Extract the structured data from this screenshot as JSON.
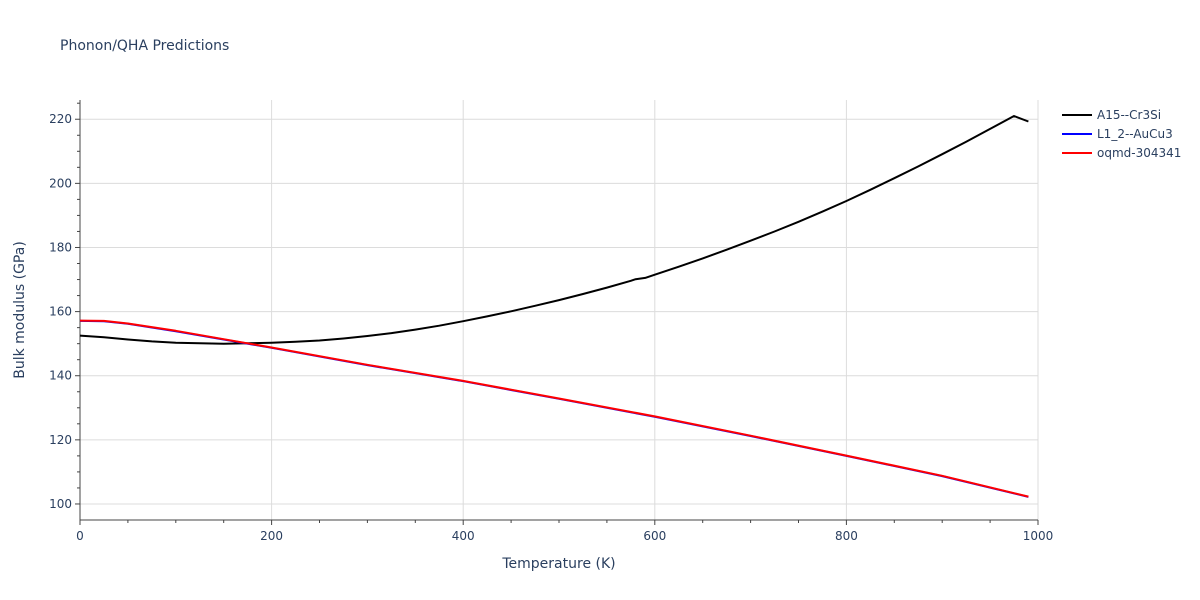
{
  "chart_data": {
    "type": "line",
    "title": "Phonon/QHA Predictions",
    "xlabel": "Temperature (K)",
    "ylabel": "Bulk modulus (GPa)",
    "xlim": [
      0,
      1000
    ],
    "ylim": [
      95,
      226
    ],
    "xticks": [
      0,
      200,
      400,
      600,
      800,
      1000
    ],
    "yticks": [
      100,
      120,
      140,
      160,
      180,
      200,
      220
    ],
    "grid": true,
    "legend_position": "top-right, outside plot",
    "series": [
      {
        "name": "A15--Cr3Si",
        "color": "#000000",
        "x": [
          0,
          25,
          50,
          75,
          100,
          125,
          150,
          175,
          200,
          225,
          250,
          275,
          300,
          325,
          350,
          375,
          400,
          425,
          450,
          475,
          500,
          525,
          550,
          575,
          580,
          590,
          600,
          625,
          650,
          675,
          700,
          725,
          750,
          775,
          800,
          825,
          850,
          875,
          900,
          925,
          950,
          975,
          990
        ],
        "y": [
          152.5,
          152.0,
          151.3,
          150.7,
          150.3,
          150.1,
          150.0,
          150.1,
          150.3,
          150.6,
          151.0,
          151.6,
          152.4,
          153.3,
          154.4,
          155.6,
          157.0,
          158.5,
          160.1,
          161.8,
          163.6,
          165.5,
          167.5,
          169.6,
          170.1,
          170.5,
          171.5,
          174.0,
          176.6,
          179.3,
          182.1,
          185.0,
          188.0,
          191.2,
          194.5,
          198.0,
          201.6,
          205.3,
          209.1,
          213.0,
          217.0,
          221.0,
          219.3
        ]
      },
      {
        "name": "L1_2--AuCu3",
        "color": "#0000ff",
        "x": [
          0,
          25,
          50,
          100,
          150,
          200,
          300,
          400,
          500,
          600,
          700,
          800,
          900,
          990
        ],
        "y": [
          157.1,
          157.0,
          156.2,
          153.9,
          151.3,
          148.7,
          143.3,
          138.3,
          132.8,
          127.2,
          121.2,
          115.0,
          108.7,
          102.2
        ]
      },
      {
        "name": "oqmd-304341",
        "color": "#ff0000",
        "x": [
          0,
          25,
          50,
          100,
          150,
          200,
          300,
          400,
          500,
          600,
          700,
          800,
          900,
          990
        ],
        "y": [
          157.2,
          157.1,
          156.3,
          154.0,
          151.4,
          148.8,
          143.4,
          138.4,
          132.9,
          127.3,
          121.3,
          115.1,
          108.8,
          102.3
        ]
      }
    ]
  }
}
